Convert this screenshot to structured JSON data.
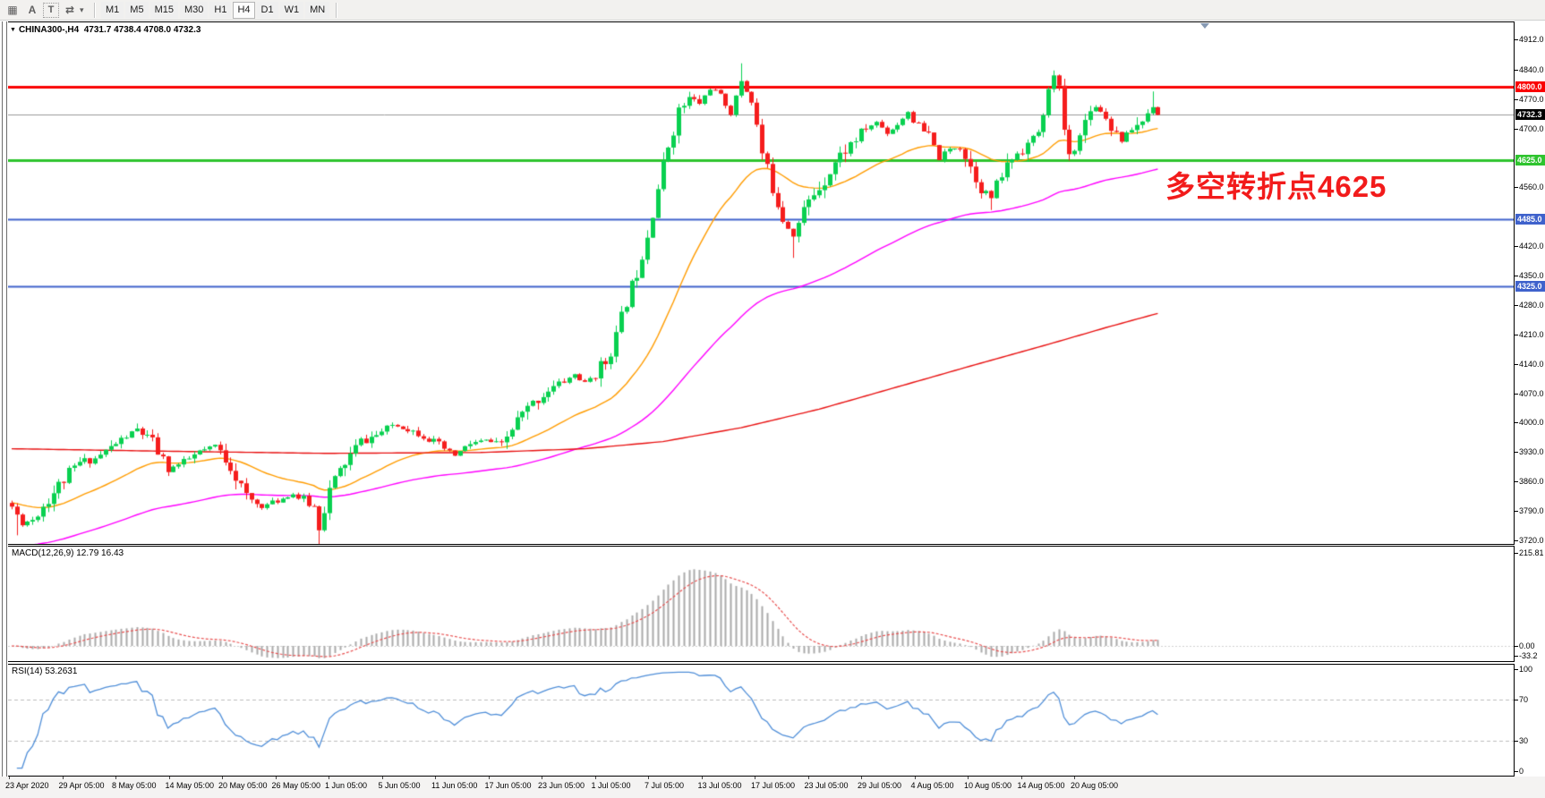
{
  "toolbar": {
    "icons": [
      {
        "name": "grid-f-icon",
        "glyph": "▦"
      },
      {
        "name": "font-a-icon",
        "glyph": "A"
      },
      {
        "name": "text-t-icon",
        "glyph": "T"
      },
      {
        "name": "cycle-arrows-icon",
        "glyph": "⇄"
      },
      {
        "name": "dropdown-caret-icon",
        "glyph": "▾"
      }
    ],
    "timeframes": [
      "M1",
      "M5",
      "M15",
      "M30",
      "H1",
      "H4",
      "D1",
      "W1",
      "MN"
    ],
    "active_timeframe": "H4"
  },
  "window": {
    "title_caret": "▼",
    "symbol": "CHINA300-,H4",
    "ohlc_text": "4731.7 4738.4 4708.0 4732.3"
  },
  "indicators": {
    "macd_label": "MACD(12,26,9) 12.79 16.43",
    "rsi_label": "RSI(14) 53.2631"
  },
  "annotation": {
    "text": "多空转折点4625",
    "color": "#f21b1b"
  },
  "chart_data": {
    "type": "candlestick",
    "symbol": "CHINA300-",
    "timeframe": "H4",
    "last_ohlc": {
      "open": 4731.7,
      "high": 4738.4,
      "low": 4708.0,
      "close": 4732.3
    },
    "up_color": "#09d050",
    "down_color": "#f51d1d",
    "y_axis": {
      "min": 3713,
      "max": 4952,
      "ticks": [
        "4912.0",
        "4840.0",
        "4770.0",
        "4700.0",
        "4560.0",
        "4420.0",
        "4350.0",
        "4280.0",
        "4210.0",
        "4140.0",
        "4070.0",
        "4000.0",
        "3930.0",
        "3860.0",
        "3790.0",
        "3720.0"
      ]
    },
    "x_labels": [
      "23 Apr 2020",
      "29 Apr 05:00",
      "8 May 05:00",
      "14 May 05:00",
      "20 May 05:00",
      "26 May 05:00",
      "1 Jun 05:00",
      "5 Jun 05:00",
      "11 Jun 05:00",
      "17 Jun 05:00",
      "23 Jun 05:00",
      "1 Jul 05:00",
      "7 Jul 05:00",
      "13 Jul 05:00",
      "17 Jul 05:00",
      "23 Jul 05:00",
      "29 Jul 05:00",
      "4 Aug 05:00",
      "10 Aug 05:00",
      "14 Aug 05:00",
      "20 Aug 05:00"
    ],
    "levels": [
      {
        "price": 4800.0,
        "label": "4800.0",
        "color": "#fa0000",
        "tag": "#fa0000",
        "width": 3
      },
      {
        "price": 4732.3,
        "label": "4732.3",
        "color": "#9a9a9a",
        "tag": "#000000",
        "width": 1
      },
      {
        "price": 4625.0,
        "label": "4625.0",
        "color": "#2ec42e",
        "tag": "#2ec42e",
        "width": 3
      },
      {
        "price": 4485.0,
        "label": "4485.0",
        "color": "#3f62cc",
        "tag": "#3f62cc",
        "width": 2
      },
      {
        "price": 4325.0,
        "label": "4325.0",
        "color": "#3f62cc",
        "tag": "#3f62cc",
        "width": 2
      }
    ],
    "bars": 221,
    "close_anchors": [
      [
        0,
        3800
      ],
      [
        2,
        3760
      ],
      [
        4,
        3770
      ],
      [
        7,
        3820
      ],
      [
        10,
        3865
      ],
      [
        13,
        3905
      ],
      [
        16,
        3915
      ],
      [
        20,
        3950
      ],
      [
        24,
        3985
      ],
      [
        27,
        3950
      ],
      [
        30,
        3890
      ],
      [
        33,
        3905
      ],
      [
        36,
        3930
      ],
      [
        39,
        3945
      ],
      [
        42,
        3900
      ],
      [
        45,
        3820
      ],
      [
        48,
        3800
      ],
      [
        51,
        3815
      ],
      [
        54,
        3830
      ],
      [
        56,
        3812
      ],
      [
        58,
        3800
      ],
      [
        59,
        3752
      ],
      [
        61,
        3840
      ],
      [
        64,
        3905
      ],
      [
        67,
        3955
      ],
      [
        70,
        3970
      ],
      [
        73,
        3995
      ],
      [
        76,
        3985
      ],
      [
        79,
        3970
      ],
      [
        82,
        3945
      ],
      [
        85,
        3922
      ],
      [
        88,
        3950
      ],
      [
        91,
        3958
      ],
      [
        94,
        3945
      ],
      [
        97,
        4005
      ],
      [
        100,
        4045
      ],
      [
        103,
        4078
      ],
      [
        106,
        4098
      ],
      [
        108,
        4115
      ],
      [
        110,
        4092
      ],
      [
        112,
        4118
      ],
      [
        114,
        4145
      ],
      [
        116,
        4205
      ],
      [
        118,
        4290
      ],
      [
        120,
        4360
      ],
      [
        122,
        4450
      ],
      [
        124,
        4560
      ],
      [
        126,
        4660
      ],
      [
        128,
        4740
      ],
      [
        130,
        4770
      ],
      [
        132,
        4760
      ],
      [
        134,
        4795
      ],
      [
        136,
        4780
      ],
      [
        138,
        4735
      ],
      [
        140,
        4815
      ],
      [
        142,
        4770
      ],
      [
        144,
        4640
      ],
      [
        146,
        4560
      ],
      [
        148,
        4490
      ],
      [
        150,
        4445
      ],
      [
        152,
        4505
      ],
      [
        154,
        4545
      ],
      [
        156,
        4580
      ],
      [
        158,
        4620
      ],
      [
        160,
        4650
      ],
      [
        162,
        4675
      ],
      [
        164,
        4700
      ],
      [
        166,
        4715
      ],
      [
        168,
        4690
      ],
      [
        170,
        4710
      ],
      [
        172,
        4740
      ],
      [
        174,
        4700
      ],
      [
        176,
        4680
      ],
      [
        178,
        4630
      ],
      [
        180,
        4650
      ],
      [
        182,
        4660
      ],
      [
        184,
        4610
      ],
      [
        186,
        4560
      ],
      [
        188,
        4535
      ],
      [
        190,
        4590
      ],
      [
        192,
        4630
      ],
      [
        194,
        4655
      ],
      [
        196,
        4670
      ],
      [
        198,
        4720
      ],
      [
        199,
        4800
      ],
      [
        200,
        4820
      ],
      [
        201,
        4790
      ],
      [
        202,
        4700
      ],
      [
        203,
        4630
      ],
      [
        205,
        4680
      ],
      [
        207,
        4755
      ],
      [
        209,
        4745
      ],
      [
        211,
        4705
      ],
      [
        213,
        4672
      ],
      [
        215,
        4700
      ],
      [
        217,
        4718
      ],
      [
        219,
        4755
      ],
      [
        220,
        4732
      ]
    ],
    "wick_events": [
      {
        "b": 1,
        "low": 3732
      },
      {
        "b": 24,
        "high": 3998
      },
      {
        "b": 59,
        "low": 3700
      },
      {
        "b": 140,
        "high": 4855
      },
      {
        "b": 150,
        "low": 4392
      },
      {
        "b": 188,
        "low": 4506
      },
      {
        "b": 200,
        "high": 4838
      },
      {
        "b": 219,
        "high": 4788
      }
    ],
    "moving_averages": [
      {
        "name": "fast",
        "color": "#ff9c00",
        "type": "ema",
        "period": 30,
        "init": 3810
      },
      {
        "name": "medium",
        "color": "#ff00ff",
        "type": "ema",
        "period": 90,
        "init": 3702
      },
      {
        "name": "slow",
        "color": "#e81010",
        "type": "anchors",
        "anchors": [
          [
            0,
            3938
          ],
          [
            30,
            3932
          ],
          [
            60,
            3927
          ],
          [
            90,
            3929
          ],
          [
            110,
            3938
          ],
          [
            125,
            3955
          ],
          [
            140,
            3988
          ],
          [
            155,
            4032
          ],
          [
            170,
            4085
          ],
          [
            185,
            4138
          ],
          [
            200,
            4190
          ],
          [
            210,
            4226
          ],
          [
            220,
            4260
          ]
        ]
      }
    ],
    "macd": {
      "fast": 12,
      "slow": 26,
      "signal": 9,
      "current_values": [
        12.79,
        16.43
      ],
      "histogram_color": "#ababab",
      "signal_color": "#e85050",
      "axis": [
        {
          "t": "215.81",
          "v": 215.81
        },
        {
          "t": "0.00",
          "v": 0
        },
        {
          "t": "-33.2",
          "v": -33.2
        }
      ]
    },
    "rsi": {
      "period": 14,
      "current_value": 53.2631,
      "color": "#4f8ed8",
      "level_lines": [
        70,
        30
      ],
      "axis": [
        {
          "t": "100",
          "v": 100
        },
        {
          "t": "70",
          "v": 70
        },
        {
          "t": "30",
          "v": 30
        },
        {
          "t": "0",
          "v": 0
        }
      ]
    }
  }
}
